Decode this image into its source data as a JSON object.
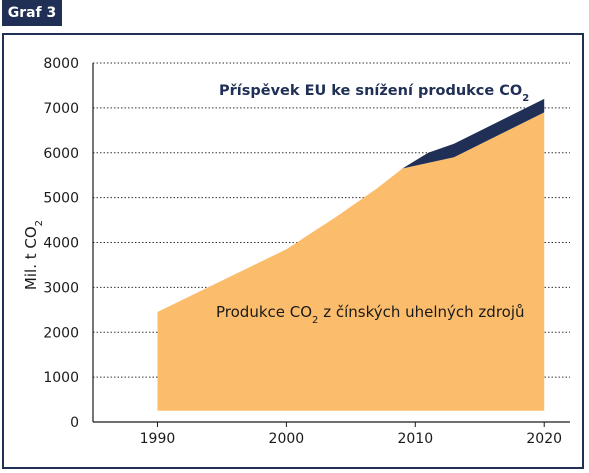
{
  "badge": "Graf 3",
  "chart_data": {
    "type": "area",
    "ylabel": "Mil. t CO2",
    "ylim": [
      0,
      8000
    ],
    "y_ticks": [
      0,
      1000,
      2000,
      3000,
      4000,
      5000,
      6000,
      7000,
      8000
    ],
    "x_ticks": [
      1990,
      2000,
      2010,
      2020
    ],
    "xlim": [
      1985,
      2022
    ],
    "grid": "horizontal dotted",
    "baseline": 250,
    "series": [
      {
        "name": "Produkce CO2 z čínských uhelných zdrojů",
        "color": "#fbbd6b",
        "x": [
          1990,
          2000,
          2004,
          2007,
          2009,
          2013,
          2020
        ],
        "values": [
          2450,
          3850,
          4600,
          5200,
          5650,
          5900,
          6900
        ]
      },
      {
        "name": "Příspěvek EU ke snížení produkce CO2",
        "color": "#1f2f55",
        "x": [
          2009,
          2011,
          2013,
          2020
        ],
        "values": [
          5650,
          6000,
          6200,
          7200
        ]
      }
    ],
    "annotations": {
      "top": {
        "text": "Příspěvek EU ke snížení produkce CO",
        "sub": "2"
      },
      "bottom": {
        "pre": "Produkce CO",
        "sub": "2",
        "post": " z čínských uhelných zdrojů"
      }
    }
  }
}
